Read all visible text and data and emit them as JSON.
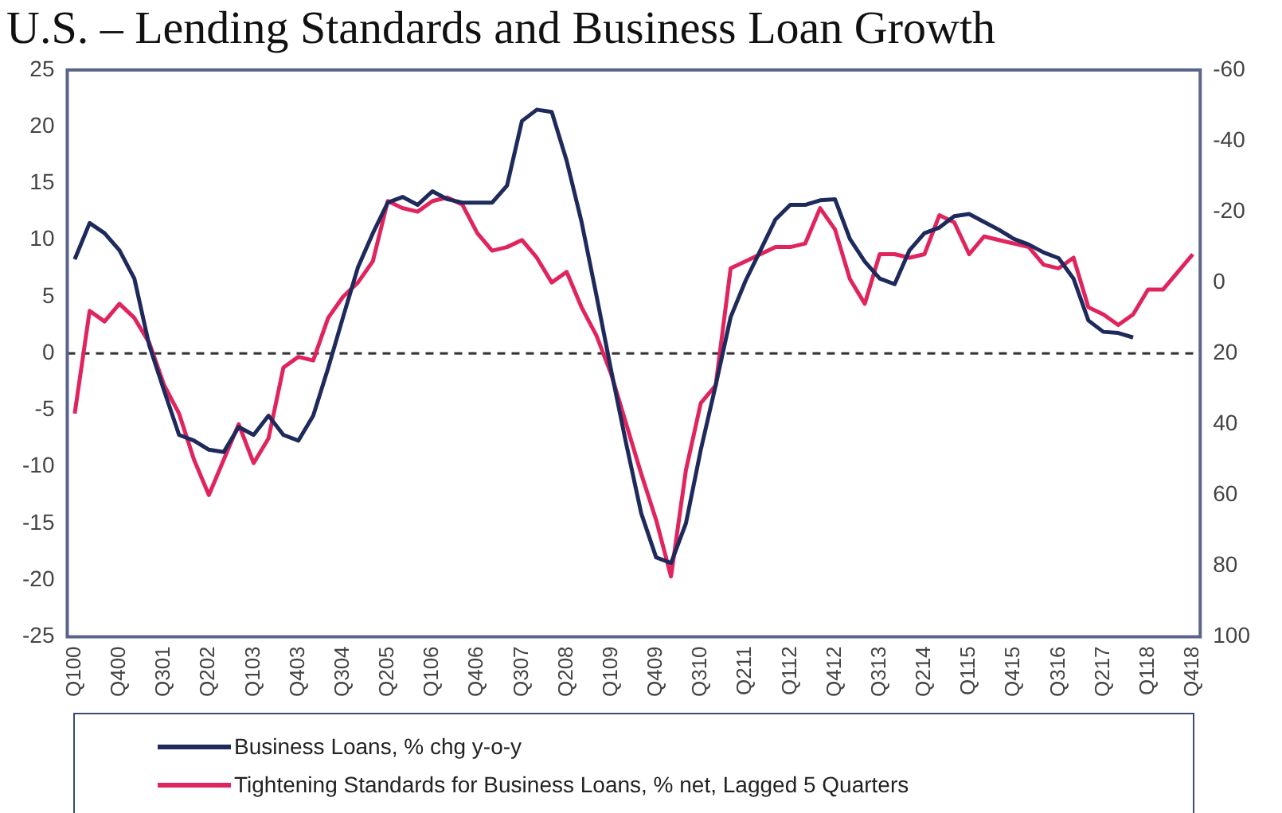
{
  "chart_data": {
    "type": "line",
    "title": "U.S. – Lending Standards and Business Loan Growth",
    "categories": [
      "Q100",
      null,
      null,
      "Q400",
      null,
      null,
      "Q301",
      null,
      null,
      "Q202",
      null,
      null,
      "Q103",
      null,
      null,
      "Q403",
      null,
      null,
      "Q304",
      null,
      null,
      "Q205",
      null,
      null,
      "Q106",
      null,
      null,
      "Q406",
      null,
      null,
      "Q307",
      null,
      null,
      "Q208",
      null,
      null,
      "Q109",
      null,
      null,
      "Q409",
      null,
      null,
      "Q310",
      null,
      null,
      "Q211",
      null,
      null,
      "Q112",
      null,
      null,
      "Q412",
      null,
      null,
      "Q313",
      null,
      null,
      "Q214",
      null,
      null,
      "Q115",
      null,
      null,
      "Q415",
      null,
      null,
      "Q316",
      null,
      null,
      "Q217",
      null,
      null,
      "Q118",
      null,
      null,
      "Q418"
    ],
    "series": [
      {
        "name": "Business Loans, % chg y-o-y",
        "color": "#1f2a5c",
        "values": [
          8.3,
          11.5,
          10.6,
          9.1,
          6.6,
          0.7,
          -3.3,
          -7.2,
          -7.7,
          -8.5,
          -8.7,
          -6.5,
          -7.2,
          -5.5,
          -7.2,
          -7.7,
          -5.5,
          -1.3,
          3.2,
          7.6,
          10.6,
          13.3,
          13.8,
          13.1,
          14.3,
          13.6,
          13.3,
          13.3,
          13.3,
          14.8,
          20.5,
          21.5,
          21.3,
          17,
          11.6,
          5.1,
          -1.6,
          -8,
          -14.1,
          -18,
          -18.5,
          -15,
          -8.5,
          -2.8,
          3.2,
          6.4,
          9.1,
          11.8,
          13.1,
          13.1,
          13.5,
          13.6,
          10.1,
          8.1,
          6.6,
          6.1,
          9.1,
          10.6,
          11.1,
          12.1,
          12.3,
          11.6,
          10.9,
          10.1,
          9.6,
          8.9,
          8.4,
          6.6,
          2.9,
          1.9,
          1.8,
          1.4,
          null,
          null,
          null,
          null
        ]
      },
      {
        "name": "Tightening Standards for Business Loans, % net, Lagged 5 Quarters",
        "color": "#e0245e",
        "axis": "y2",
        "values": [
          37,
          8,
          11,
          6,
          10,
          17,
          29,
          37,
          50,
          60,
          50,
          40,
          51,
          44,
          24,
          21,
          22,
          10,
          4,
          0,
          -6,
          -23,
          -21,
          -20,
          -23,
          -24,
          -22,
          -14,
          -9,
          -10,
          -12,
          -7,
          0,
          -3,
          7,
          15,
          26,
          40,
          54,
          67,
          83,
          53,
          34,
          29,
          -4,
          -6,
          -8,
          -10,
          -10,
          -11,
          -21,
          -15,
          -1,
          6,
          -8,
          -8,
          -7,
          -8,
          -19,
          -17,
          -8,
          -13,
          -12,
          -11,
          -10,
          -5,
          -4,
          -7,
          7,
          9,
          12,
          9,
          2,
          2,
          -3,
          -8
        ]
      }
    ],
    "ylim": [
      -25,
      25
    ],
    "yticks": [
      -25,
      -20,
      -15,
      -10,
      -5,
      0,
      5,
      10,
      15,
      20,
      25
    ],
    "y2lim": [
      100,
      -60
    ],
    "y2ticks": [
      -60,
      -40,
      -20,
      0,
      20,
      40,
      60,
      80,
      100
    ],
    "ref_lines": [
      {
        "axis": "y",
        "value": 0,
        "color": "#333333",
        "line_style": "dashed"
      }
    ],
    "grid": false,
    "legend": "bottom",
    "marker": "none",
    "line_style": "solid"
  }
}
